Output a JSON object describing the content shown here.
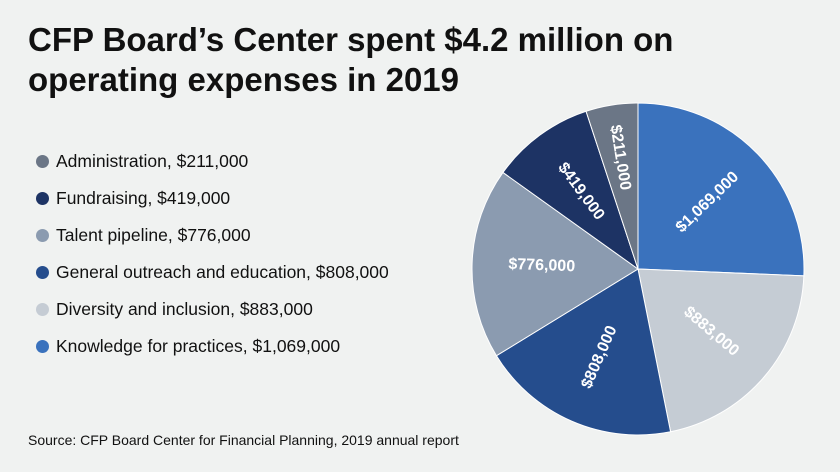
{
  "title": "CFP Board’s Center spent $4.2 million on operating expenses in 2019",
  "source": "Source: CFP Board Center for Financial Planning, 2019 annual report",
  "chart_data": {
    "type": "pie",
    "title": "CFP Board’s Center spent $4.2 million on operating expenses in 2019",
    "legend_position": "left",
    "slices": [
      {
        "legend": "Administration, $211,000",
        "label": "$211,000",
        "value": 211000,
        "color": "#6b7686"
      },
      {
        "legend": "Fundraising, $419,000",
        "label": "$419,000",
        "value": 419000,
        "color": "#1d3364"
      },
      {
        "legend": "Talent pipeline, $776,000",
        "label": "$776,000",
        "value": 776000,
        "color": "#8b9bb0"
      },
      {
        "legend": "General outreach and education, $808,000",
        "label": "$808,000",
        "value": 808000,
        "color": "#254d8d"
      },
      {
        "legend": "Diversity and inclusion, $883,000",
        "label": "$883,000",
        "value": 883000,
        "color": "#c5ccd4"
      },
      {
        "legend": "Knowledge for practices, $1,069,000",
        "label": "$1,069,000",
        "value": 1069000,
        "color": "#3a72bd"
      }
    ]
  }
}
